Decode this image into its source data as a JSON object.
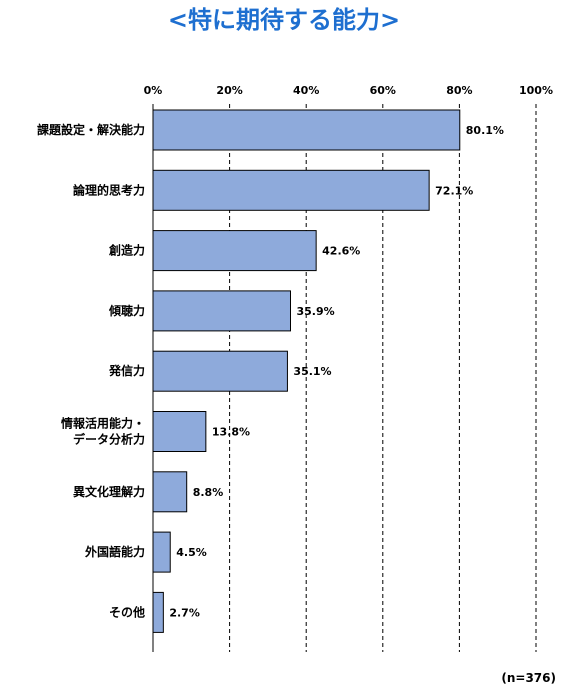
{
  "title": "<特に期待する能力>",
  "note": "(n=376)",
  "colors": {
    "title": "#1e6fd0",
    "bar_fill": "#8eaadb",
    "bar_stroke": "#000000",
    "grid": "#000000"
  },
  "chart_data": {
    "type": "bar",
    "orientation": "horizontal",
    "categories": [
      [
        "課題設定・解決能力"
      ],
      [
        "論理的思考力"
      ],
      [
        "創造力"
      ],
      [
        "傾聴力"
      ],
      [
        "発信力"
      ],
      [
        "情報活用能力・",
        "データ分析力"
      ],
      [
        "異文化理解力"
      ],
      [
        "外国語能力"
      ],
      [
        "その他"
      ]
    ],
    "values": [
      80.1,
      72.1,
      42.6,
      35.9,
      35.1,
      13.8,
      8.8,
      4.5,
      2.7
    ],
    "value_labels": [
      "80.1%",
      "72.1%",
      "42.6%",
      "35.9%",
      "35.1%",
      "13.8%",
      "8.8%",
      "4.5%",
      "2.7%"
    ],
    "xlim": [
      0,
      100
    ],
    "ticks": [
      0,
      20,
      40,
      60,
      80,
      100
    ],
    "tick_labels": [
      "0%",
      "20%",
      "40%",
      "60%",
      "80%",
      "100%"
    ],
    "xaxis_position": "top",
    "grid": "vertical-dashed"
  }
}
